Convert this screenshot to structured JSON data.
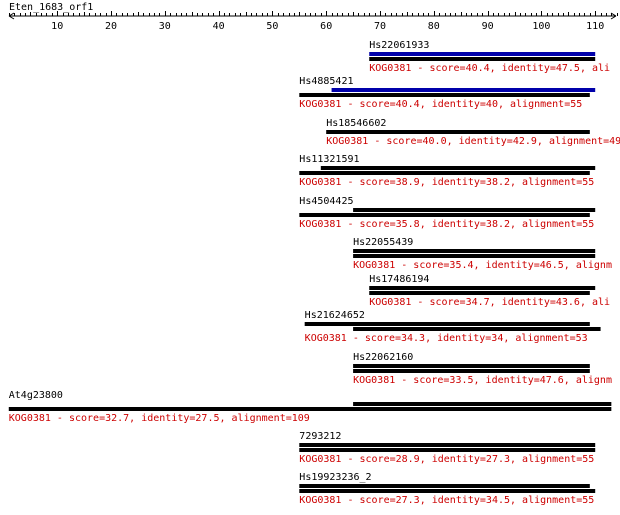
{
  "query": {
    "name": "Eten_1683_orf1",
    "axis_ticks": [
      "10",
      "20",
      "30",
      "40",
      "50",
      "60",
      "70",
      "80",
      "90",
      "100",
      "110"
    ]
  },
  "colors": {
    "bar_black": "#000000",
    "bar_blue": "#0000aa",
    "desc_red": "#cc0000"
  },
  "chart_data": {
    "type": "alignment-map",
    "xlim": [
      1,
      115
    ],
    "hits": [
      {
        "name": "Hs22061933",
        "desc": "KOG0381 - score=40.4, identity=47.5, ali",
        "bars": [
          {
            "start": 68,
            "end": 110,
            "color": "blue"
          },
          {
            "start": 68,
            "end": 110,
            "color": "black"
          }
        ]
      },
      {
        "name": "Hs4885421",
        "desc": "KOG0381 - score=40.4, identity=40, alignment=55",
        "bars": [
          {
            "start": 61,
            "end": 110,
            "color": "blue"
          },
          {
            "start": 55,
            "end": 109,
            "color": "black"
          }
        ]
      },
      {
        "name": "Hs18546602",
        "desc": "KOG0381 - score=40.0, identity=42.9, alignment=49",
        "bars": [
          {
            "start": 60,
            "end": 109,
            "color": "black"
          }
        ]
      },
      {
        "name": "Hs11321591",
        "desc": "KOG0381 - score=38.9, identity=38.2, alignment=55",
        "bars": [
          {
            "start": 59,
            "end": 110,
            "color": "black"
          },
          {
            "start": 55,
            "end": 109,
            "color": "black"
          }
        ]
      },
      {
        "name": "Hs4504425",
        "desc": "KOG0381 - score=35.8, identity=38.2, alignment=55",
        "bars": [
          {
            "start": 65,
            "end": 110,
            "color": "black"
          },
          {
            "start": 55,
            "end": 109,
            "color": "black"
          }
        ]
      },
      {
        "name": "Hs22055439",
        "desc": "KOG0381 - score=35.4, identity=46.5, alignm",
        "bars": [
          {
            "start": 65,
            "end": 110,
            "color": "black"
          },
          {
            "start": 65,
            "end": 110,
            "color": "black"
          }
        ]
      },
      {
        "name": "Hs17486194",
        "desc": "KOG0381 - score=34.7, identity=43.6, ali",
        "bars": [
          {
            "start": 68,
            "end": 110,
            "color": "black"
          },
          {
            "start": 68,
            "end": 109,
            "color": "black"
          }
        ]
      },
      {
        "name": "Hs21624652",
        "desc": "KOG0381 - score=34.3, identity=34, alignment=53",
        "bars": [
          {
            "start": 56,
            "end": 109,
            "color": "black"
          },
          {
            "start": 65,
            "end": 111,
            "color": "black"
          }
        ]
      },
      {
        "name": "Hs22062160",
        "desc": "KOG0381 - score=33.5, identity=47.6, alignm",
        "bars": [
          {
            "start": 65,
            "end": 109,
            "color": "black"
          },
          {
            "start": 65,
            "end": 109,
            "color": "black"
          }
        ]
      },
      {
        "name": "At4g23800",
        "desc": "KOG0381 - score=32.7, identity=27.5, alignment=109",
        "bars": [
          {
            "start": 65,
            "end": 113,
            "color": "black"
          },
          {
            "start": 1,
            "end": 113,
            "color": "black"
          }
        ]
      },
      {
        "name": "7293212",
        "desc": "KOG0381 - score=28.9, identity=27.3, alignment=55",
        "bars": [
          {
            "start": 55,
            "end": 110,
            "color": "black"
          },
          {
            "start": 55,
            "end": 110,
            "color": "black"
          }
        ]
      },
      {
        "name": "Hs19923236_2",
        "desc": "KOG0381 - score=27.3, identity=34.5, alignment=55",
        "bars": [
          {
            "start": 55,
            "end": 109,
            "color": "black"
          },
          {
            "start": 55,
            "end": 110,
            "color": "black"
          }
        ]
      }
    ]
  }
}
